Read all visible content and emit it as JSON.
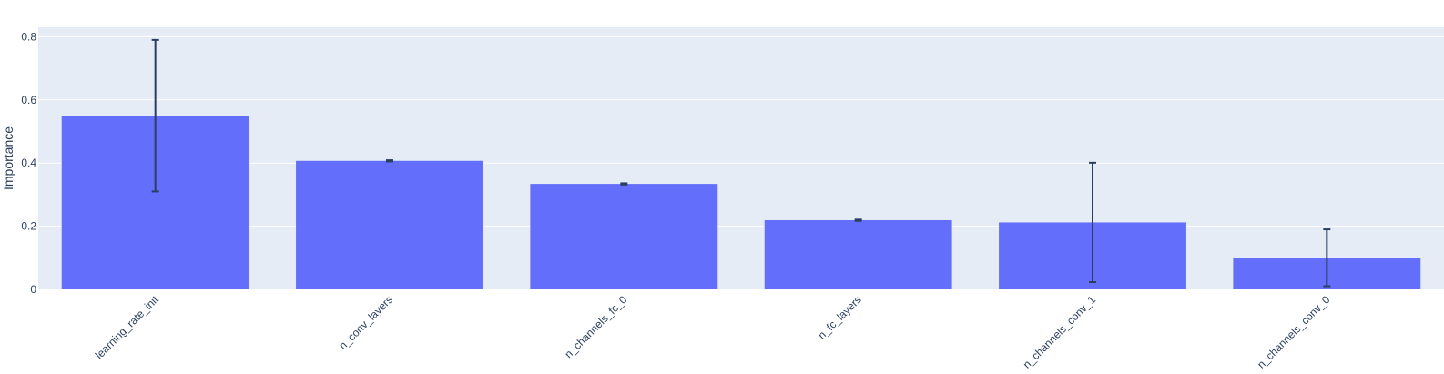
{
  "chart_data": {
    "type": "bar",
    "title": "",
    "xlabel": "",
    "ylabel": "Importance",
    "ylim": [
      0,
      0.83
    ],
    "yticks": [
      0,
      0.2,
      0.4,
      0.6,
      0.8
    ],
    "ytick_labels": [
      "0",
      "0.2",
      "0.4",
      "0.6",
      "0.8"
    ],
    "grid": true,
    "categories": [
      "learning_rate_init",
      "n_conv_layers",
      "n_channels_fc_0",
      "n_fc_layers",
      "n_channels_conv_1",
      "n_channels_conv_0"
    ],
    "values": [
      0.549,
      0.407,
      0.334,
      0.219,
      0.212,
      0.099
    ],
    "error_low": [
      0.31,
      0.405,
      0.332,
      0.217,
      0.023,
      0.01
    ],
    "error_high": [
      0.79,
      0.409,
      0.336,
      0.221,
      0.401,
      0.19
    ],
    "colors": {
      "bar": "#636efa",
      "plot_bg": "#e5ecf6",
      "grid": "#ffffff",
      "error_bar": "#2a3f5f",
      "text": "#2a3f5f"
    }
  }
}
